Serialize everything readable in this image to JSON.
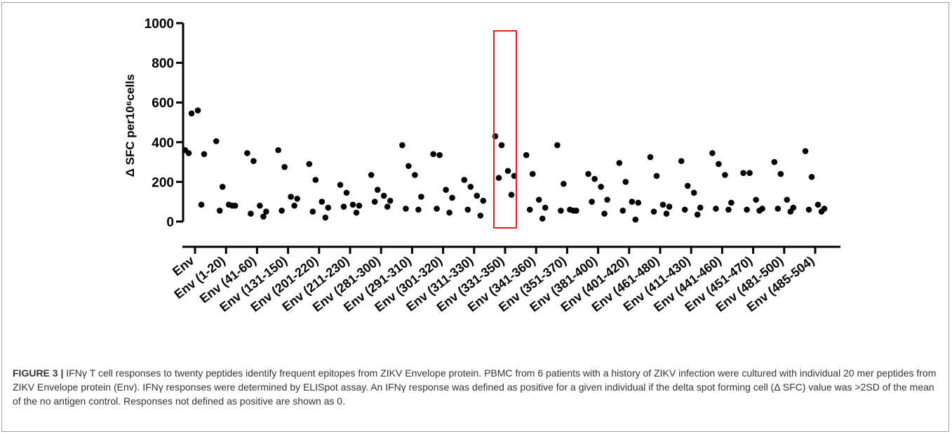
{
  "chart_data": {
    "type": "scatter",
    "ylabel": "Δ SFC per10⁶cells",
    "ylim": [
      0,
      1000
    ],
    "yticks": [
      0,
      200,
      400,
      600,
      800,
      1000
    ],
    "grid": false,
    "highlight_category": "Env (331-350)",
    "highlight_color": "#e02020",
    "point_color": "#000000",
    "categories": [
      "Env",
      "Env (1-20)",
      "Env (41-60)",
      "Env (131-150)",
      "Env (201-220)",
      "Env (211-230)",
      "Env (281-300)",
      "Env (291-310)",
      "Env (301-320)",
      "Env (311-330)",
      "Env (331-350)",
      "Env (341-360)",
      "Env (351-370)",
      "Env (381-400)",
      "Env (401-420)",
      "Env (461-480)",
      "Env (411-430)",
      "Env (441-460)",
      "Env (451-470)",
      "Env (481-500)",
      "Env (485-504)"
    ],
    "values": [
      [
        360,
        545,
        560,
        340,
        345,
        85
      ],
      [
        405,
        175,
        85,
        80,
        55,
        80
      ],
      [
        345,
        305,
        80,
        50,
        40,
        25
      ],
      [
        360,
        275,
        125,
        115,
        55,
        80
      ],
      [
        290,
        210,
        100,
        70,
        50,
        20
      ],
      [
        185,
        145,
        85,
        80,
        75,
        45
      ],
      [
        235,
        160,
        130,
        105,
        100,
        75
      ],
      [
        385,
        280,
        235,
        125,
        65,
        60
      ],
      [
        340,
        335,
        160,
        120,
        65,
        45
      ],
      [
        210,
        175,
        130,
        105,
        60,
        30
      ],
      [
        430,
        385,
        255,
        230,
        220,
        135
      ],
      [
        335,
        240,
        110,
        70,
        60,
        15
      ],
      [
        385,
        190,
        60,
        55,
        55,
        55
      ],
      [
        240,
        215,
        175,
        110,
        100,
        40
      ],
      [
        295,
        200,
        100,
        95,
        55,
        10
      ],
      [
        325,
        230,
        85,
        75,
        50,
        40
      ],
      [
        305,
        180,
        145,
        70,
        60,
        35
      ],
      [
        345,
        290,
        235,
        95,
        65,
        60
      ],
      [
        245,
        245,
        110,
        65,
        60,
        55
      ],
      [
        300,
        240,
        110,
        70,
        65,
        50
      ],
      [
        355,
        225,
        85,
        65,
        60,
        50
      ]
    ]
  },
  "caption": {
    "label": "FIGURE 3 |",
    "text": " IFNγ T cell responses to twenty peptides identify frequent epitopes from ZIKV Envelope protein. PBMC from 6 patients with a history of ZIKV infection were cultured with individual 20 mer peptides from ZIKV Envelope protein (Env). IFNγ responses were determined by ELISpot assay. An IFNγ response was defined as positive for a given individual if the delta spot forming cell (Δ SFC) value was >2SD of the mean of the no antigen control. Responses not defined as positive are shown as 0."
  }
}
